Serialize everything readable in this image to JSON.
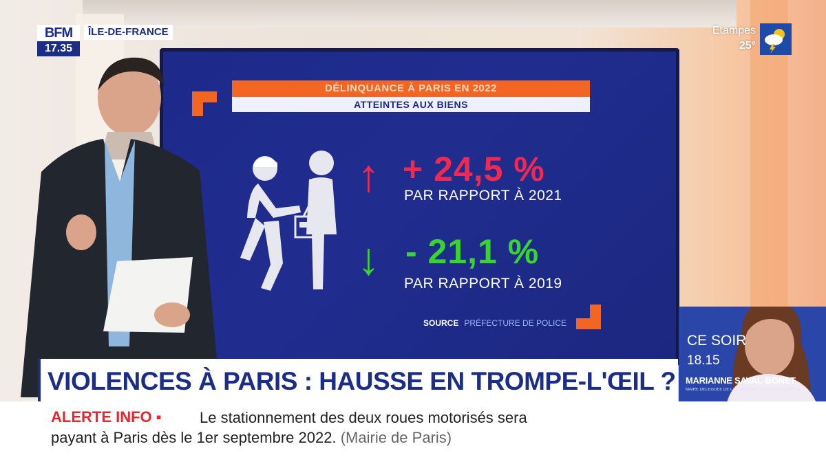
{
  "channel": {
    "logo_text": "BFM",
    "time": "17.35",
    "region": "ÎLE-DE-FRANCE"
  },
  "weather": {
    "city": "Etampes",
    "temperature": "25°",
    "icon": "partly-cloudy-storm-icon"
  },
  "screen": {
    "title": "DÉLINQUANCE À PARIS EN 2022",
    "subtitle": "ATTEINTES AUX BIENS",
    "stat_up": {
      "value": "+ 24,5 %",
      "comparison": "PAR RAPPORT À 2021",
      "color": "#ee2a53"
    },
    "stat_down": {
      "value": "- 21,1 %",
      "comparison": "PAR RAPPORT À 2019",
      "color": "#38d430"
    },
    "source_label": "SOURCE",
    "source_value": "PRÉFECTURE DE POLICE"
  },
  "guest": {
    "when": "CE SOIR",
    "time": "18.15",
    "name": "MARIANNE SAVAL-BONET",
    "role": "MAIRE DÉLÉGUÉE DE LA COMMUNE DE REVIN-VERMEUIL"
  },
  "headline": "VIOLENCES À PARIS : HAUSSE EN TROMPE-L'ŒIL ?",
  "ticker": {
    "label": "ALERTE INFO ▪",
    "line1": "Le stationnement des deux roues motorisés sera",
    "line2": "payant à Paris dès le 1er septembre 2022.",
    "source": "(Mairie de Paris)"
  },
  "colors": {
    "brand": "#1b2d86",
    "accent": "#f26522",
    "alert": "#e8262d"
  }
}
